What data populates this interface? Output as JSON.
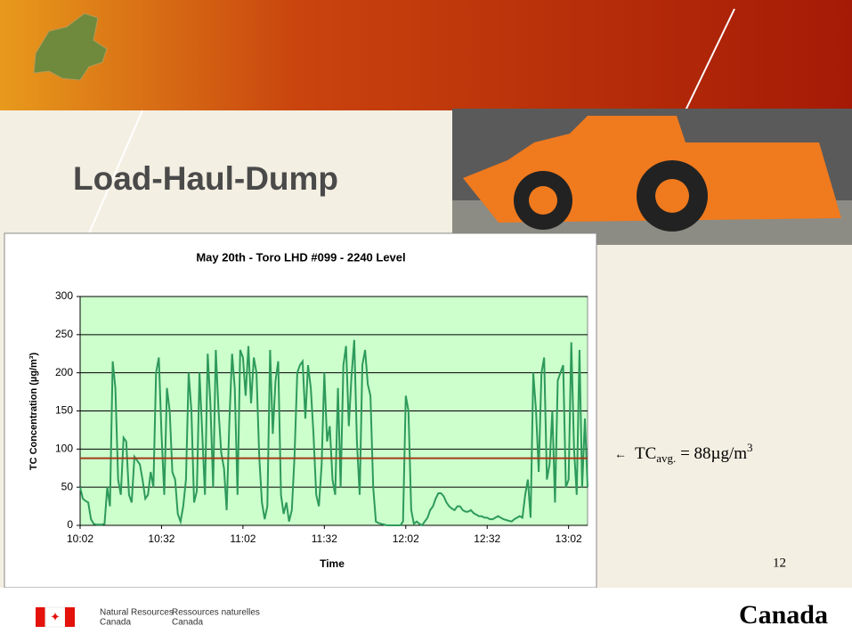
{
  "slide": {
    "title": "Load-Haul-Dump",
    "annotation": {
      "base": "TC",
      "sub": "avg.",
      "mid": " = 88µg/m",
      "sup": "3"
    },
    "page_number": "12",
    "footer": {
      "en": [
        "Natural Resources",
        "Canada"
      ],
      "fr": [
        "Ressources naturelles",
        "Canada"
      ],
      "wordmark": "Canada"
    }
  },
  "chart_data": {
    "type": "line",
    "title": "May 20th - Toro LHD #099 - 2240 Level",
    "x_label": "Time",
    "y_label": "TC Concentration (µg/m³)",
    "categories": [
      "10:02",
      null,
      null,
      null,
      null,
      null,
      null,
      null,
      null,
      null,
      null,
      null,
      null,
      null,
      null,
      null,
      null,
      null,
      null,
      null,
      null,
      null,
      null,
      null,
      null,
      null,
      null,
      null,
      null,
      null,
      "10:32",
      null,
      null,
      null,
      null,
      null,
      null,
      null,
      null,
      null,
      null,
      null,
      null,
      null,
      null,
      null,
      null,
      null,
      null,
      null,
      null,
      null,
      null,
      null,
      null,
      null,
      null,
      null,
      null,
      null,
      "11:02",
      null,
      null,
      null,
      null,
      null,
      null,
      null,
      null,
      null,
      null,
      null,
      null,
      null,
      null,
      null,
      null,
      null,
      null,
      null,
      null,
      null,
      null,
      null,
      null,
      null,
      null,
      null,
      null,
      null,
      "11:32",
      null,
      null,
      null,
      null,
      null,
      null,
      null,
      null,
      null,
      null,
      null,
      null,
      null,
      null,
      null,
      null,
      null,
      null,
      null,
      null,
      null,
      null,
      null,
      null,
      null,
      null,
      null,
      null,
      null,
      "12:02",
      null,
      null,
      null,
      null,
      null,
      null,
      null,
      null,
      null,
      null,
      null,
      null,
      null,
      null,
      null,
      null,
      null,
      null,
      null,
      null,
      null,
      null,
      null,
      null,
      null,
      null,
      null,
      null,
      null,
      "12:32",
      null,
      null,
      null,
      null,
      null,
      null,
      null,
      null,
      null,
      null,
      null,
      null,
      null,
      null,
      null,
      null,
      null,
      null,
      null,
      null,
      null,
      null,
      null,
      null,
      null,
      null,
      null,
      null,
      null,
      "13:02",
      null,
      null,
      null,
      null,
      null,
      null,
      null
    ],
    "series": [
      {
        "name": "TC",
        "color": "#2e9a5c",
        "values": [
          50,
          35,
          32,
          30,
          8,
          2,
          1,
          1,
          1,
          2,
          50,
          25,
          215,
          180,
          60,
          40,
          115,
          110,
          40,
          30,
          90,
          85,
          80,
          60,
          35,
          40,
          70,
          50,
          200,
          220,
          120,
          40,
          180,
          150,
          70,
          60,
          15,
          5,
          25,
          60,
          200,
          150,
          30,
          45,
          200,
          120,
          40,
          225,
          160,
          50,
          230,
          150,
          95,
          75,
          20,
          135,
          225,
          180,
          40,
          230,
          220,
          170,
          235,
          160,
          220,
          200,
          90,
          30,
          8,
          25,
          230,
          120,
          190,
          215,
          40,
          15,
          30,
          5,
          20,
          90,
          200,
          210,
          215,
          140,
          210,
          180,
          120,
          40,
          25,
          80,
          200,
          110,
          130,
          60,
          40,
          180,
          50,
          210,
          235,
          130,
          195,
          243,
          110,
          40,
          210,
          230,
          185,
          170,
          50,
          5,
          3,
          2,
          1,
          0,
          0,
          0,
          0,
          0,
          0,
          5,
          170,
          150,
          20,
          2,
          5,
          2,
          0,
          5,
          10,
          20,
          25,
          35,
          42,
          42,
          38,
          30,
          25,
          22,
          20,
          25,
          25,
          20,
          18,
          18,
          20,
          16,
          14,
          12,
          12,
          10,
          10,
          8,
          8,
          10,
          12,
          10,
          8,
          7,
          6,
          5,
          8,
          10,
          12,
          10,
          40,
          60,
          10,
          200,
          150,
          70,
          200,
          220,
          60,
          80,
          150,
          30,
          190,
          200,
          210,
          50,
          60,
          240,
          100,
          40,
          230,
          50,
          140,
          50
        ]
      }
    ],
    "reference_line": {
      "value": 88,
      "color": "#a23a1c"
    },
    "ylim": [
      0,
      300
    ],
    "yticks": [
      0,
      50,
      100,
      150,
      200,
      250,
      300
    ],
    "grid": true,
    "plot_background": "#ccffcc"
  }
}
